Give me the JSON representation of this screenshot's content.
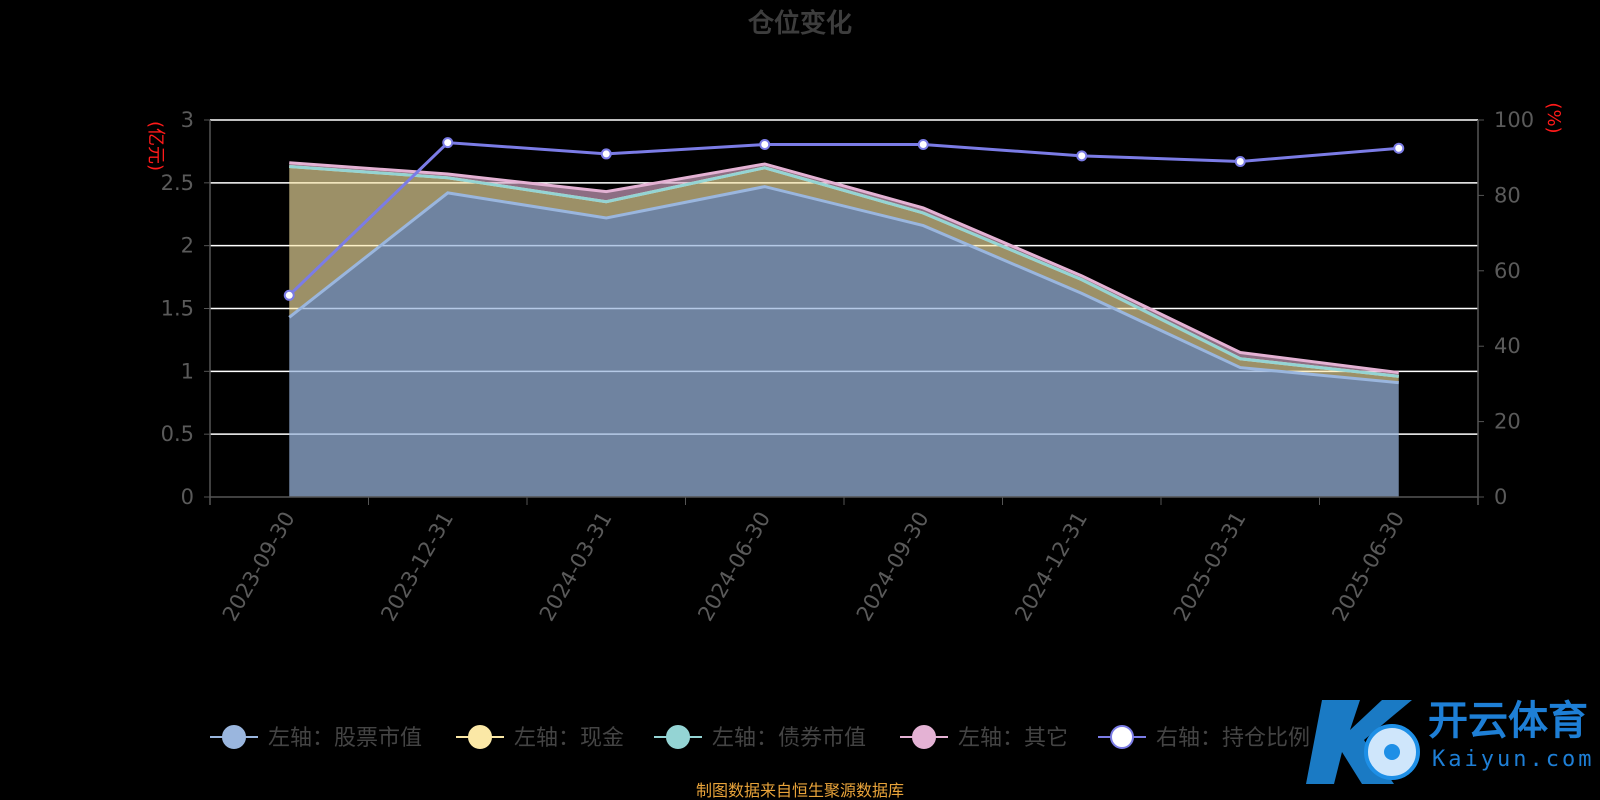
{
  "chart_data": {
    "type": "area",
    "title": "仓位变化",
    "x": [
      "2023-09-30",
      "2023-12-31",
      "2024-03-31",
      "2024-06-30",
      "2024-09-30",
      "2024-12-31",
      "2025-03-31",
      "2025-06-30"
    ],
    "y_left": {
      "unit": "(亿元)",
      "ylim": [
        0,
        3
      ],
      "ticks": [
        "0",
        "0.5",
        "1",
        "1.5",
        "2",
        "2.5",
        "3"
      ]
    },
    "y_right": {
      "unit": "(%)",
      "ylim": [
        0,
        100
      ],
      "ticks": [
        "0",
        "20",
        "40",
        "60",
        "80",
        "100"
      ]
    },
    "stacked_series": [
      {
        "name": "左轴：股票市值",
        "axis": "left",
        "color": "#9ab6de",
        "values": [
          1.43,
          2.42,
          2.22,
          2.47,
          2.16,
          1.62,
          1.03,
          0.91
        ]
      },
      {
        "name": "左轴：现金",
        "axis": "left",
        "color": "#fbe8a6",
        "values": [
          1.2,
          0.12,
          0.13,
          0.15,
          0.1,
          0.11,
          0.07,
          0.05
        ]
      },
      {
        "name": "左轴：债券市值",
        "axis": "left",
        "color": "#94d4d4",
        "values": [
          0,
          0,
          0,
          0,
          0,
          0,
          0,
          0
        ]
      },
      {
        "name": "左轴：其它",
        "axis": "left",
        "color": "#e4b2d4",
        "values": [
          0.03,
          0.03,
          0.08,
          0.03,
          0.04,
          0.03,
          0.05,
          0.03
        ]
      }
    ],
    "line_series": {
      "name": "右轴：持仓比例",
      "axis": "right",
      "color": "#7b7ce6",
      "values": [
        53.5,
        94,
        91,
        93.5,
        93.5,
        90.5,
        89,
        92.5
      ]
    },
    "grid": true,
    "legend_position": "bottom"
  },
  "source_note": "制图数据来自恒生聚源数据库",
  "watermark": {
    "brand_cn": "开云体育",
    "brand_url": "Kaiyun.com"
  }
}
